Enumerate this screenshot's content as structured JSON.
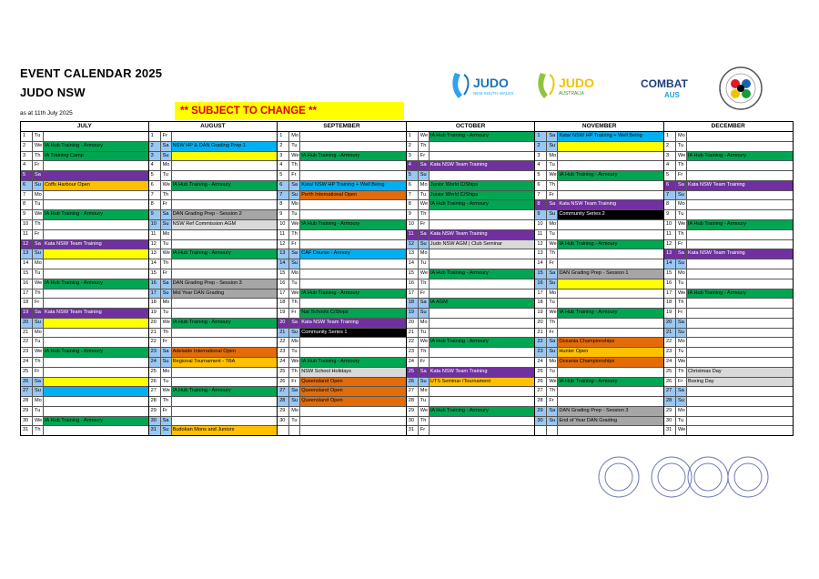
{
  "header": {
    "title": "EVENT CALENDAR 2025",
    "subtitle": "JUDO NSW",
    "as_at": "as at 11th July 2025",
    "banner": "** SUBJECT TO CHANGE **"
  },
  "logos": {
    "judo_nsw": "JUDO",
    "judo_nsw_sub": "NEW SOUTH WALES",
    "judo_aus": "JUDO",
    "judo_aus_sub": "AUSTRALIA",
    "combat": "COMBAT",
    "combat_sub": "AUS"
  },
  "colors": {
    "green": "#00a651",
    "purple": "#7030a0",
    "blue": "#00b0f0",
    "yellow": "#ffff00",
    "orange": "#f4b183",
    "darkorange": "#e36c09",
    "gray": "#a6a6a6",
    "black": "#000000",
    "lightgray": "#d9d9d9",
    "weekend": "#9ac7f2",
    "orange2": "#ffc000"
  },
  "months": [
    {
      "name": "JULY",
      "days": [
        [
          "1",
          "Tu",
          "",
          ""
        ],
        [
          "2",
          "We",
          "IA Hub Training - Armoury",
          "green"
        ],
        [
          "3",
          "Th",
          "IA Training Camp",
          "green"
        ],
        [
          "4",
          "Fr",
          "",
          ""
        ],
        [
          "5",
          "Sa",
          "",
          "purple"
        ],
        [
          "6",
          "Su",
          "Coffs Harbour Open",
          "orange2"
        ],
        [
          "7",
          "Mo",
          "",
          ""
        ],
        [
          "8",
          "Tu",
          "",
          ""
        ],
        [
          "9",
          "We",
          "IA Hub Training - Armoury",
          "green"
        ],
        [
          "10",
          "Th",
          "",
          ""
        ],
        [
          "11",
          "Fr",
          "",
          ""
        ],
        [
          "12",
          "Sa",
          "Kata NSW Team Training",
          "purple"
        ],
        [
          "13",
          "Su",
          "",
          "yellow"
        ],
        [
          "14",
          "Mo",
          "",
          ""
        ],
        [
          "15",
          "Tu",
          "",
          ""
        ],
        [
          "16",
          "We",
          "IA Hub Training - Armoury",
          "green"
        ],
        [
          "17",
          "Th",
          "",
          ""
        ],
        [
          "18",
          "Fr",
          "",
          ""
        ],
        [
          "19",
          "Sa",
          "Kata NSW Team Training",
          "purple"
        ],
        [
          "20",
          "Su",
          "",
          "yellow"
        ],
        [
          "21",
          "Mo",
          "",
          ""
        ],
        [
          "22",
          "Tu",
          "",
          ""
        ],
        [
          "23",
          "We",
          "IA Hub Training - Armoury",
          "green"
        ],
        [
          "24",
          "Th",
          "",
          ""
        ],
        [
          "25",
          "Fr",
          "",
          ""
        ],
        [
          "26",
          "Sa",
          "",
          "yellow"
        ],
        [
          "27",
          "Su",
          "",
          "blue"
        ],
        [
          "28",
          "Mo",
          "",
          ""
        ],
        [
          "29",
          "Tu",
          "",
          ""
        ],
        [
          "30",
          "We",
          "IA Hub Training - Armoury",
          "green"
        ],
        [
          "31",
          "Th",
          "",
          ""
        ]
      ]
    },
    {
      "name": "AUGUST",
      "days": [
        [
          "1",
          "Fr",
          "",
          ""
        ],
        [
          "2",
          "Sa",
          "NSW HP & DAN Grading Prep 1",
          "blue"
        ],
        [
          "3",
          "Su",
          "",
          "yellow"
        ],
        [
          "4",
          "Mo",
          "",
          ""
        ],
        [
          "5",
          "Tu",
          "",
          ""
        ],
        [
          "6",
          "We",
          "IA Hub Training - Armoury",
          "green"
        ],
        [
          "7",
          "Th",
          "",
          ""
        ],
        [
          "8",
          "Fr",
          "",
          ""
        ],
        [
          "9",
          "Sa",
          "DAN Grading Prep - Session 2",
          "gray"
        ],
        [
          "10",
          "Su",
          "NSW Ref Commission AGM",
          "lightgray"
        ],
        [
          "11",
          "Mo",
          "",
          ""
        ],
        [
          "12",
          "Tu",
          "",
          ""
        ],
        [
          "13",
          "We",
          "IA Hub Training - Armoury",
          "green"
        ],
        [
          "14",
          "Th",
          "",
          ""
        ],
        [
          "15",
          "Fr",
          "",
          ""
        ],
        [
          "16",
          "Sa",
          "DAN Grading Prep - Session 3",
          "gray"
        ],
        [
          "17",
          "Su",
          "Mid Year DAN Grading",
          "gray"
        ],
        [
          "18",
          "Mo",
          "",
          ""
        ],
        [
          "19",
          "Tu",
          "",
          ""
        ],
        [
          "20",
          "We",
          "IA Hub Training - Armoury",
          "green"
        ],
        [
          "21",
          "Th",
          "",
          ""
        ],
        [
          "22",
          "Fr",
          "",
          ""
        ],
        [
          "23",
          "Sa",
          "Adelaide International Open",
          "darkorange"
        ],
        [
          "24",
          "Su",
          "Regional Tournament - TBA",
          "orange2"
        ],
        [
          "25",
          "Mo",
          "",
          ""
        ],
        [
          "26",
          "Tu",
          "",
          ""
        ],
        [
          "27",
          "We",
          "IA Hub Training - Armoury",
          "green"
        ],
        [
          "28",
          "Th",
          "",
          ""
        ],
        [
          "29",
          "Fr",
          "",
          ""
        ],
        [
          "30",
          "Sa",
          "",
          ""
        ],
        [
          "31",
          "Su",
          "Budokan Mons and Juniors",
          "orange2"
        ]
      ]
    },
    {
      "name": "SEPTEMBER",
      "days": [
        [
          "1",
          "Mo",
          "",
          ""
        ],
        [
          "2",
          "Tu",
          "",
          ""
        ],
        [
          "3",
          "We",
          "IA Hub Training - Armoury",
          "green"
        ],
        [
          "4",
          "Th",
          "",
          ""
        ],
        [
          "5",
          "Fr",
          "",
          ""
        ],
        [
          "6",
          "Sa",
          "Kata/ NSW HP Training + Well Being",
          "blue"
        ],
        [
          "7",
          "Su",
          "Perth International Open",
          "darkorange"
        ],
        [
          "8",
          "Mo",
          "",
          ""
        ],
        [
          "9",
          "Tu",
          "",
          ""
        ],
        [
          "10",
          "We",
          "IA Hub Training - Armoury",
          "green"
        ],
        [
          "11",
          "Th",
          "",
          ""
        ],
        [
          "12",
          "Fr",
          "",
          ""
        ],
        [
          "13",
          "Sa",
          "CAF Course - Armory",
          "blue"
        ],
        [
          "14",
          "Su",
          "",
          ""
        ],
        [
          "15",
          "Mo",
          "",
          ""
        ],
        [
          "16",
          "Tu",
          "",
          ""
        ],
        [
          "17",
          "We",
          "IA Hub Training - Armoury",
          "green"
        ],
        [
          "18",
          "Th",
          "",
          ""
        ],
        [
          "19",
          "Fr",
          "Nat Schools C/Ships",
          "green"
        ],
        [
          "20",
          "Sa",
          "Kata NSW Team Training",
          "purple"
        ],
        [
          "21",
          "Su",
          "Community Series 1",
          "black"
        ],
        [
          "22",
          "Mo",
          "",
          ""
        ],
        [
          "23",
          "Tu",
          "",
          ""
        ],
        [
          "24",
          "We",
          "IA Hub Training - Armoury",
          "green"
        ],
        [
          "25",
          "Th",
          "NSW School Holidays",
          "lightgray"
        ],
        [
          "26",
          "Fr",
          "Queensland Open",
          "darkorange"
        ],
        [
          "27",
          "Sa",
          "Queensland Open",
          "darkorange"
        ],
        [
          "28",
          "Su",
          "Queensland Open",
          "darkorange"
        ],
        [
          "29",
          "Mo",
          "",
          ""
        ],
        [
          "30",
          "Tu",
          "",
          ""
        ],
        [
          "",
          "",
          "",
          ""
        ]
      ]
    },
    {
      "name": "OCTOBER",
      "days": [
        [
          "1",
          "We",
          "IA Hub Training - Armoury",
          "green"
        ],
        [
          "2",
          "Th",
          "",
          ""
        ],
        [
          "3",
          "Fr",
          "",
          ""
        ],
        [
          "4",
          "Sa",
          "Kata NSW Team Training",
          "purple"
        ],
        [
          "5",
          "Su",
          "",
          ""
        ],
        [
          "6",
          "Mo",
          "Junior World C/Ships",
          "green"
        ],
        [
          "7",
          "Tu",
          "Junior World C/Ships",
          "green"
        ],
        [
          "8",
          "We",
          "IA Hub Training - Armoury",
          "green"
        ],
        [
          "9",
          "Th",
          "",
          ""
        ],
        [
          "10",
          "Fr",
          "",
          ""
        ],
        [
          "11",
          "Sa",
          "Kata NSW Team Training",
          "purple"
        ],
        [
          "12",
          "Su",
          "Judo NSW AGM | Club Seminar",
          "lightgray"
        ],
        [
          "13",
          "Mo",
          "",
          ""
        ],
        [
          "14",
          "Tu",
          "",
          ""
        ],
        [
          "15",
          "We",
          "IA Hub Training - Armoury",
          "green"
        ],
        [
          "16",
          "Th",
          "",
          ""
        ],
        [
          "17",
          "Fr",
          "",
          ""
        ],
        [
          "18",
          "Sa",
          "IA AGM",
          "green"
        ],
        [
          "19",
          "Su",
          "",
          ""
        ],
        [
          "20",
          "Mo",
          "",
          ""
        ],
        [
          "21",
          "Tu",
          "",
          ""
        ],
        [
          "22",
          "We",
          "IA Hub Training - Armoury",
          "green"
        ],
        [
          "23",
          "Th",
          "",
          ""
        ],
        [
          "24",
          "Fr",
          "",
          ""
        ],
        [
          "25",
          "Sa",
          "Kata NSW Team Training",
          "purple"
        ],
        [
          "26",
          "Su",
          "UTS Seminar /Tournament",
          "orange2"
        ],
        [
          "27",
          "Mo",
          "",
          ""
        ],
        [
          "28",
          "Tu",
          "",
          ""
        ],
        [
          "29",
          "We",
          "IA Hub Training - Armoury",
          "green"
        ],
        [
          "30",
          "Th",
          "",
          ""
        ],
        [
          "31",
          "Fr",
          "",
          ""
        ]
      ]
    },
    {
      "name": "NOVEMBER",
      "days": [
        [
          "1",
          "Sa",
          "Kata/ NSW HP Training + Well Being",
          "blue"
        ],
        [
          "2",
          "Su",
          "",
          "yellow"
        ],
        [
          "3",
          "Mo",
          "",
          ""
        ],
        [
          "4",
          "Tu",
          "",
          ""
        ],
        [
          "5",
          "We",
          "IA Hub Training - Armoury",
          "green"
        ],
        [
          "6",
          "Th",
          "",
          ""
        ],
        [
          "7",
          "Fr",
          "",
          ""
        ],
        [
          "8",
          "Sa",
          "Kata NSW Team Training",
          "purple"
        ],
        [
          "9",
          "Su",
          "Community Series 2",
          "black"
        ],
        [
          "10",
          "Mo",
          "",
          ""
        ],
        [
          "11",
          "Tu",
          "",
          ""
        ],
        [
          "12",
          "We",
          "IA Hub Training - Armoury",
          "green"
        ],
        [
          "13",
          "Th",
          "",
          ""
        ],
        [
          "14",
          "Fr",
          "",
          ""
        ],
        [
          "15",
          "Sa",
          "DAN Grading Prep - Session 1",
          "gray"
        ],
        [
          "16",
          "Su",
          "",
          "yellow"
        ],
        [
          "17",
          "Mo",
          "",
          ""
        ],
        [
          "18",
          "Tu",
          "",
          ""
        ],
        [
          "19",
          "We",
          "IA Hub Training - Armoury",
          "green"
        ],
        [
          "20",
          "Th",
          "",
          ""
        ],
        [
          "21",
          "Fr",
          "",
          ""
        ],
        [
          "22",
          "Sa",
          "Oceania Championships",
          "darkorange"
        ],
        [
          "23",
          "Su",
          "Hunter Open",
          "orange2"
        ],
        [
          "24",
          "Mo",
          "Oceania Championships",
          "darkorange"
        ],
        [
          "25",
          "Tu",
          "",
          ""
        ],
        [
          "26",
          "We",
          "IA Hub Training - Armoury",
          "green"
        ],
        [
          "27",
          "Th",
          "",
          ""
        ],
        [
          "28",
          "Fr",
          "",
          ""
        ],
        [
          "29",
          "Sa",
          "DAN Grading Prep - Session 3",
          "gray"
        ],
        [
          "30",
          "Su",
          "End of Year DAN Grading",
          "gray"
        ],
        [
          "",
          "",
          "",
          ""
        ]
      ]
    },
    {
      "name": "DECEMBER",
      "days": [
        [
          "1",
          "Mo",
          "",
          ""
        ],
        [
          "2",
          "Tu",
          "",
          ""
        ],
        [
          "3",
          "We",
          "IA Hub Training - Armoury",
          "green"
        ],
        [
          "4",
          "Th",
          "",
          ""
        ],
        [
          "5",
          "Fr",
          "",
          ""
        ],
        [
          "6",
          "Sa",
          "Kata NSW Team Training",
          "purple"
        ],
        [
          "7",
          "Su",
          "",
          ""
        ],
        [
          "8",
          "Mo",
          "",
          ""
        ],
        [
          "9",
          "Tu",
          "",
          ""
        ],
        [
          "10",
          "We",
          "IA Hub Training - Armoury",
          "green"
        ],
        [
          "11",
          "Th",
          "",
          ""
        ],
        [
          "12",
          "Fr",
          "",
          ""
        ],
        [
          "13",
          "Sa",
          "Kata NSW Team Training",
          "purple"
        ],
        [
          "14",
          "Su",
          "",
          ""
        ],
        [
          "15",
          "Mo",
          "",
          ""
        ],
        [
          "16",
          "Tu",
          "",
          ""
        ],
        [
          "17",
          "We",
          "IA Hub Training - Armoury",
          "green"
        ],
        [
          "18",
          "Th",
          "",
          ""
        ],
        [
          "19",
          "Fr",
          "",
          ""
        ],
        [
          "20",
          "Sa",
          "",
          ""
        ],
        [
          "21",
          "Su",
          "",
          ""
        ],
        [
          "22",
          "Mo",
          "",
          ""
        ],
        [
          "23",
          "Tu",
          "",
          ""
        ],
        [
          "24",
          "We",
          "",
          ""
        ],
        [
          "25",
          "Th",
          "Christmas Day",
          "lightgray"
        ],
        [
          "26",
          "Fr",
          "Boxing Day",
          "lightgray"
        ],
        [
          "27",
          "Sa",
          "",
          ""
        ],
        [
          "28",
          "Su",
          "",
          ""
        ],
        [
          "29",
          "Mo",
          "",
          ""
        ],
        [
          "30",
          "Tu",
          "",
          ""
        ],
        [
          "31",
          "We",
          "",
          ""
        ]
      ]
    }
  ]
}
